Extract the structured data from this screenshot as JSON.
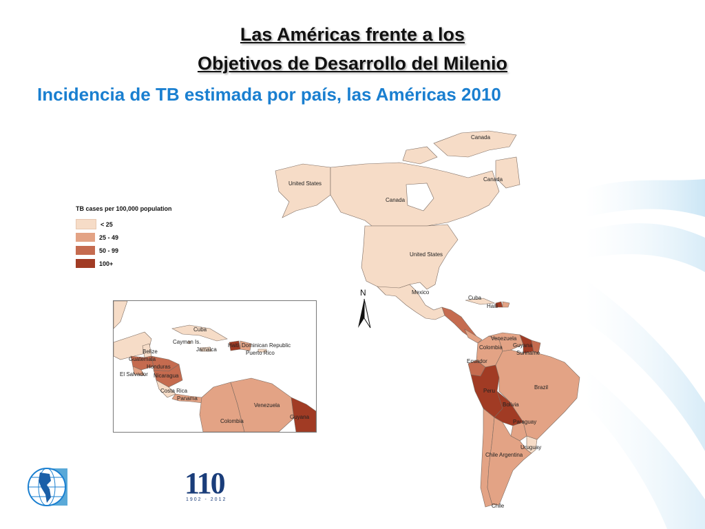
{
  "header": {
    "title_line1": "Las Américas frente a los",
    "title_line2": "Objetivos de Desarrollo del Milenio",
    "subtitle": "Incidencia de TB estimada  por país, las Américas 2010"
  },
  "legend": {
    "title": "TB cases per 100,000 population",
    "items": [
      {
        "label": "< 25",
        "color": "#f6dcc7"
      },
      {
        "label": "25 - 49",
        "color": "#e3a385"
      },
      {
        "label": "50 - 99",
        "color": "#c56b4f"
      },
      {
        "label": "100+",
        "color": "#a13b24"
      }
    ]
  },
  "map_labels": {
    "canada_n": "Canada",
    "canada_e": "Canada",
    "canada": "Canada",
    "us_alaska": "United States",
    "us": "United States",
    "mexico": "Mexico",
    "cuba": "Cuba",
    "haiti": "Haiti",
    "venezuela": "Venezuela",
    "guyana": "Guyana",
    "suriname": "Suriname",
    "colombia": "Colombia",
    "ecuador": "Ecuador",
    "peru": "Peru",
    "brazil": "Brazil",
    "bolivia": "Bolivia",
    "paraguay": "Paraguay",
    "uruguay": "Uruguay",
    "chile": "Chile",
    "argentina": "Argentina",
    "chile_s": "Chile"
  },
  "inset_labels": {
    "cuba": "Cuba",
    "cayman": "Cayman Is.",
    "jamaica": "Jamaica",
    "haiti": "Haiti",
    "dominican": "Dominican Republic",
    "puerto_rico": "Puerto Rico",
    "belize": "Belize",
    "guatemala": "Guatemala",
    "honduras": "Honduras",
    "el_salvador": "El Salvador",
    "nicaragua": "Nicaragua",
    "costa_rica": "Costa Rica",
    "panama": "Panama",
    "venezuela": "Venezuela",
    "guyana": "Guyana",
    "colombia": "Colombia"
  },
  "north_arrow": "N",
  "logo_110": {
    "number": "110",
    "years": "1902 - 2012"
  },
  "icons": [
    "globe-americas-icon",
    "north-arrow-icon"
  ]
}
